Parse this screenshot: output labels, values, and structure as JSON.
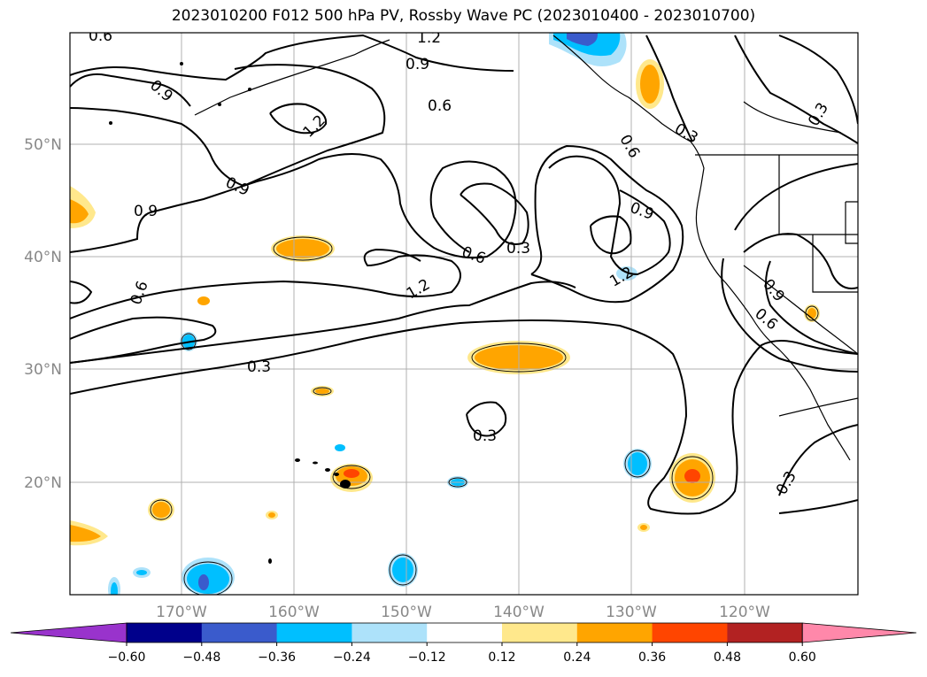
{
  "title": "2023010200 F012 500 hPa PV, Rossby Wave PC (2023010400 - 2023010700)",
  "axes": {
    "lon_ticks": [
      "170°W",
      "160°W",
      "150°W",
      "140°W",
      "130°W",
      "120°W"
    ],
    "lat_ticks": [
      "50°N",
      "40°N",
      "30°N",
      "20°N"
    ]
  },
  "contour_labels": [
    "0.6",
    "1.2",
    "0.9",
    "0.9",
    "0.6",
    "1.2",
    "0.9",
    "0.9",
    "0.6",
    "0.3",
    "0.9",
    "0.6",
    "0.3",
    "1.2",
    "1.2",
    "0.3",
    "0.3",
    "0.9",
    "0.6",
    "0.3",
    "0.3",
    "0.6"
  ],
  "colorbar": {
    "ticks": [
      "−0.60",
      "−0.48",
      "−0.36",
      "−0.24",
      "−0.12",
      "0.12",
      "0.24",
      "0.36",
      "0.48",
      "0.60"
    ],
    "colors": [
      "#9933CC",
      "#00008B",
      "#3A5BCC",
      "#00BFFF",
      "#ADE2FA",
      "#FFFFFF",
      "#FFE88C",
      "#FFA500",
      "#FF4500",
      "#B22222",
      "#FF88AA"
    ]
  }
}
